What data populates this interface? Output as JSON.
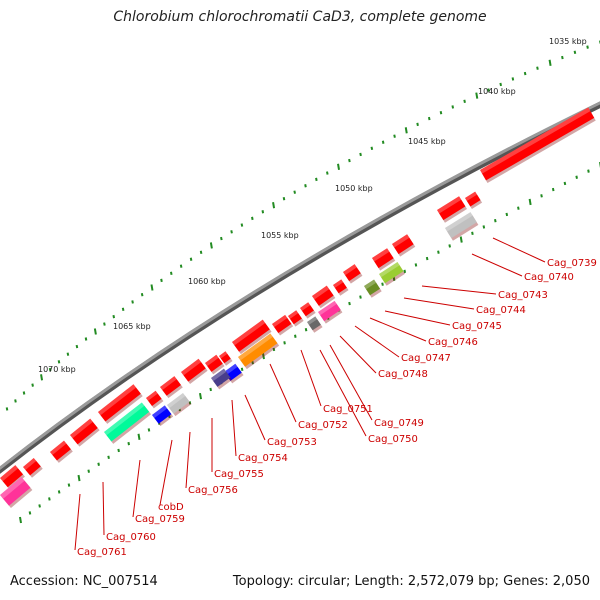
{
  "title": "Chlorobium chlorochromatii CaD3, complete genome",
  "footer": {
    "accession": "Accession: NC_007514",
    "topology": "Topology: circular; Length: 2,572,079 bp; Genes: 2,050"
  },
  "scale_labels": [
    "1035 kbp",
    "1040 kbp",
    "1045 kbp",
    "1050 kbp",
    "1055 kbp",
    "1060 kbp",
    "1065 kbp",
    "1070 kbp"
  ],
  "gene_labels": [
    "Cag_0739",
    "Cag_0740",
    "Cag_0743",
    "Cag_0744",
    "Cag_0745",
    "Cag_0746",
    "Cag_0747",
    "Cag_0748",
    "Cag_0749",
    "Cag_0750",
    "Cag_0751",
    "Cag_0752",
    "Cag_0753",
    "Cag_0754",
    "Cag_0755",
    "Cag_0756",
    "cobD",
    "Cag_0759",
    "Cag_0760",
    "Cag_0761"
  ],
  "colors": {
    "backbone": "#808080",
    "forward_gene": "#ff0000",
    "label": "#cc0000",
    "tick": "#228b22"
  }
}
